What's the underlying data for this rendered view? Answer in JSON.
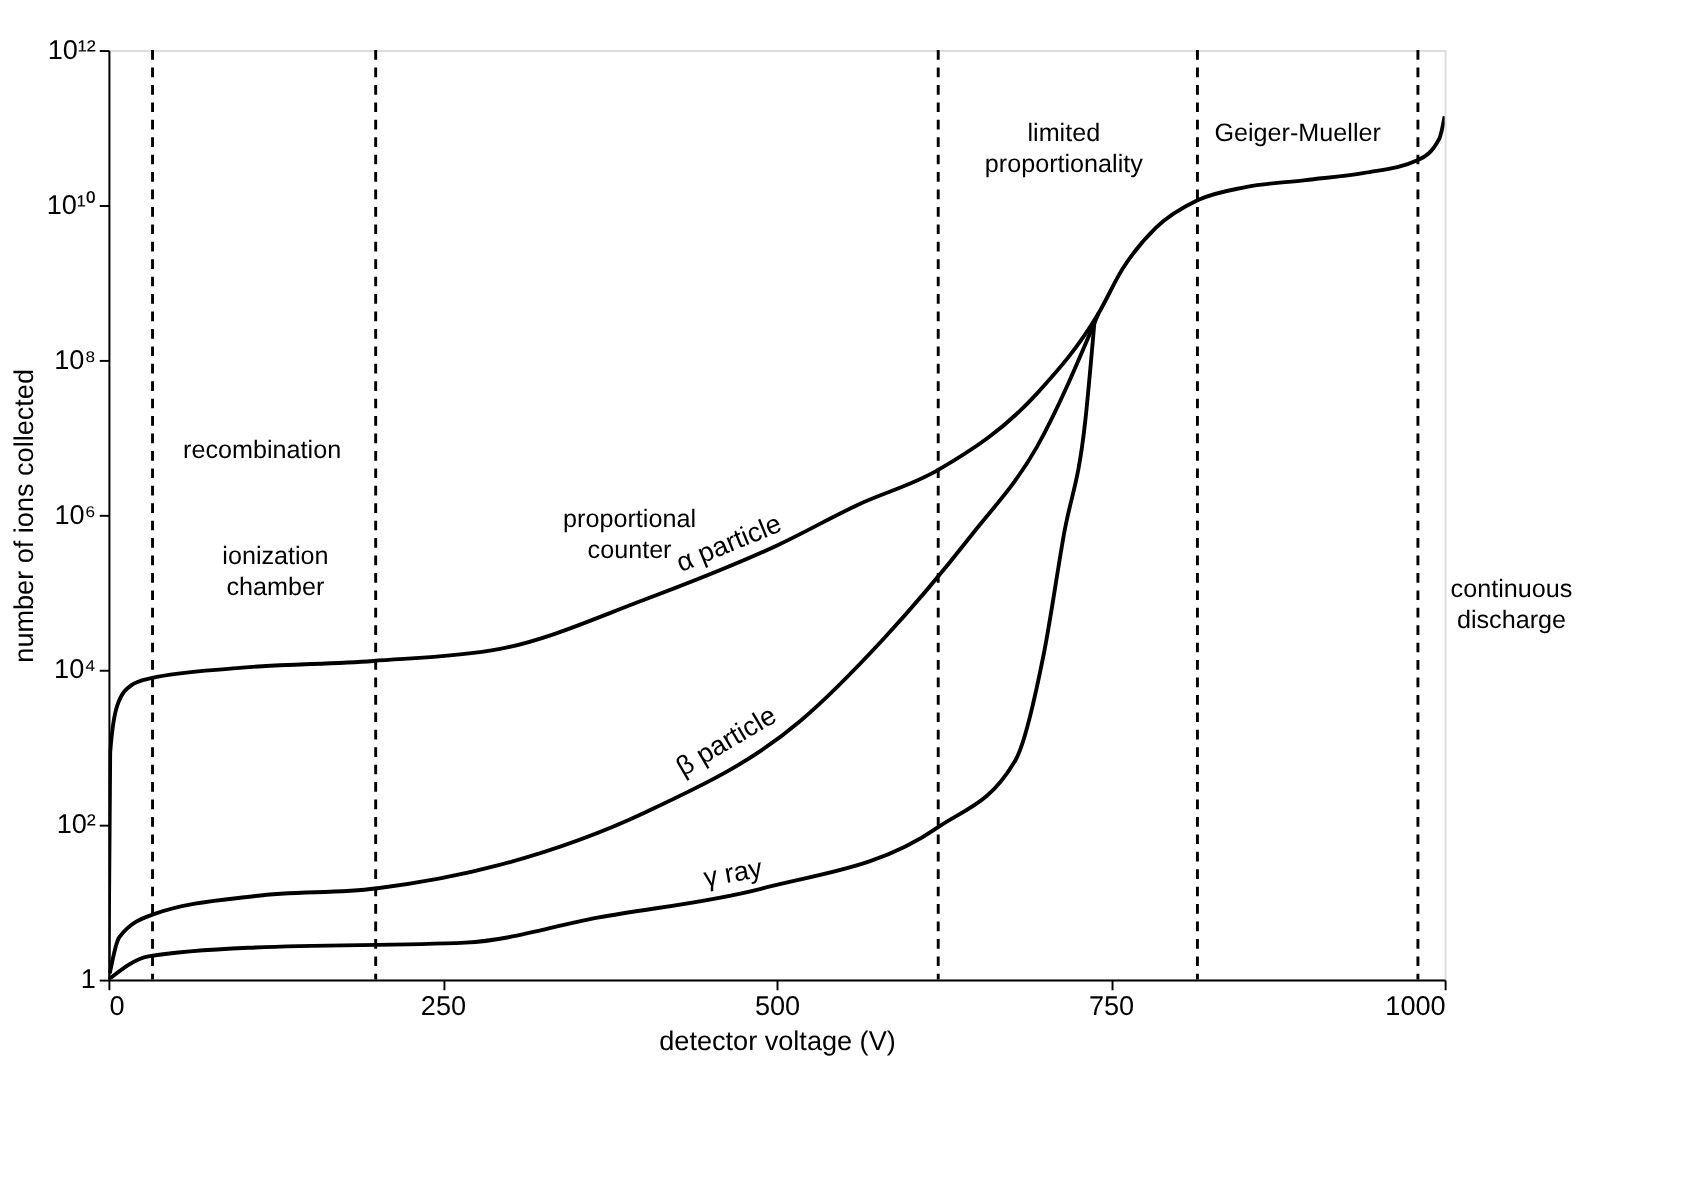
{
  "chart_data": {
    "type": "line",
    "xlabel": "detector voltage (V)",
    "ylabel": "number of ions collected",
    "xlim": [
      0,
      1000
    ],
    "xticks": [
      0,
      250,
      500,
      750,
      1000
    ],
    "ylim": [
      1,
      1000000000000
    ],
    "log": "y",
    "yticks": [
      {
        "value": 1,
        "label": "1"
      },
      {
        "value": 100,
        "label": "10²"
      },
      {
        "value": 10000,
        "label": "10⁴"
      },
      {
        "value": 1000000,
        "label": "10⁶"
      },
      {
        "value": 100000000,
        "label": "10⁸"
      },
      {
        "value": 10000000000,
        "label": "10¹⁰"
      },
      {
        "value": 1000000000000,
        "label": "10¹²"
      }
    ],
    "grid": false,
    "line_style": "solid",
    "series": [
      {
        "name": "α particle",
        "color": "#000000",
        "x": [
          0,
          1.3,
          6.7,
          17,
          32,
          96,
          198,
          293,
          400,
          500,
          561,
          621,
          695,
          741,
          759,
          784,
          815,
          851,
          896,
          940,
          980,
          996,
          1000
        ],
        "values": [
          1,
          850,
          3500,
          6300,
          7800,
          10500,
          13000,
          18600,
          79000,
          400000,
          1350000,
          3800000,
          37000000,
          400000000,
          1500000000,
          5100000000,
          11500000000,
          17000000000,
          21000000000,
          26000000000,
          38000000000,
          72000000000,
          140000000000
        ]
      },
      {
        "name": "β particle",
        "color": "#000000",
        "x": [
          1,
          8,
          34,
          110,
          200,
          292,
          402,
          518,
          580,
          646,
          695,
          741
        ],
        "values": [
          1.2,
          3.5,
          7,
          12,
          15,
          30,
          145,
          2200,
          25000,
          550000,
          7600000,
          400000000
        ]
      },
      {
        "name": "γ ray",
        "color": "#000000",
        "x": [
          0,
          30,
          110,
          267,
          366,
          489,
          621,
          679,
          700,
          715,
          731,
          738
        ],
        "values": [
          1,
          2,
          2.6,
          3,
          6.3,
          15,
          93,
          690,
          16000,
          550000,
          16000000,
          320000000
        ]
      }
    ],
    "ref_lines": [
      {
        "axis": "x",
        "value": 33,
        "color": "#000000",
        "line_style": "dashed"
      },
      {
        "axis": "x",
        "value": 200,
        "color": "#000000",
        "line_style": "dashed"
      },
      {
        "axis": "x",
        "value": 621,
        "color": "#000000",
        "line_style": "dashed"
      },
      {
        "axis": "x",
        "value": 815,
        "color": "#000000",
        "line_style": "dashed"
      },
      {
        "axis": "x",
        "value": 980,
        "color": "#000000",
        "line_style": "dashed"
      }
    ],
    "annotations": [
      "recombination",
      "ionization chamber",
      "proportional counter",
      "limited proportionality",
      "Geiger-Mueller",
      "continuous discharge"
    ]
  }
}
